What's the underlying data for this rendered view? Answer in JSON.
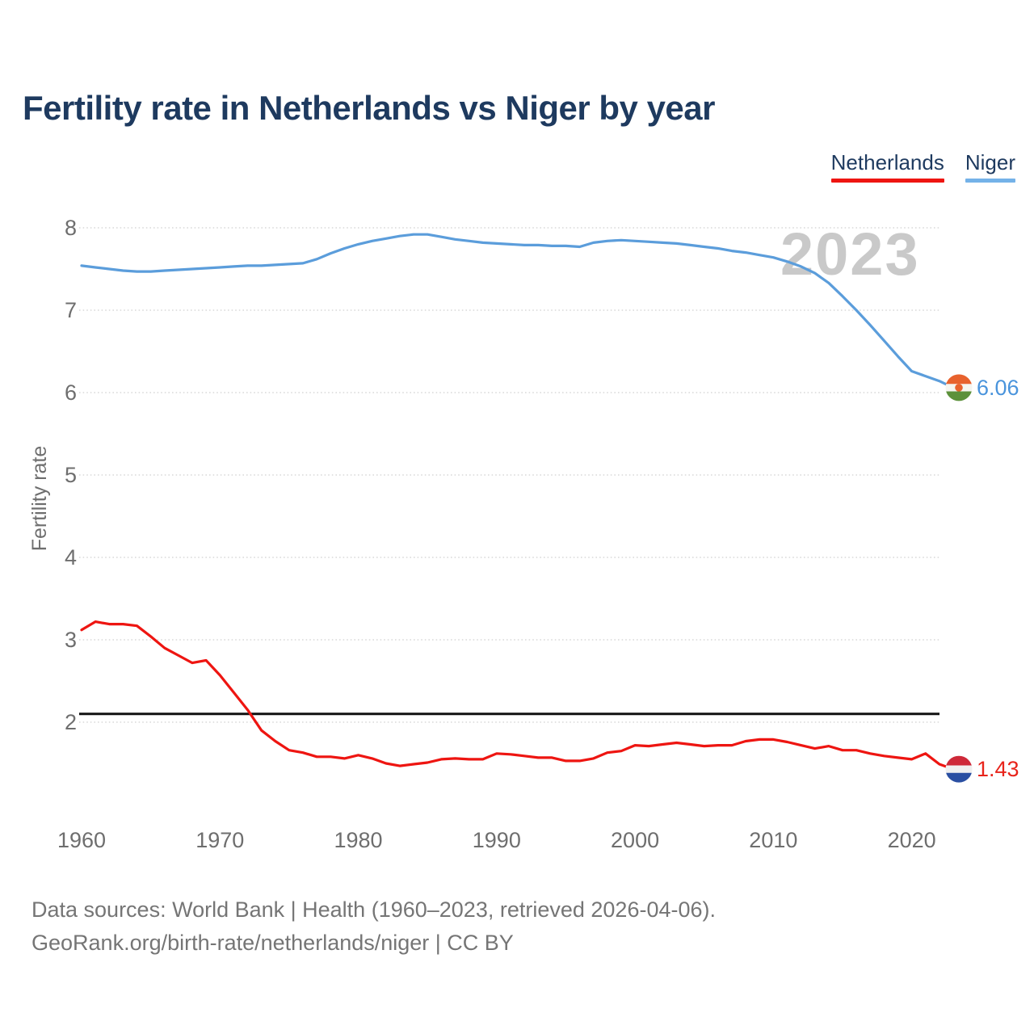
{
  "header": {
    "title": "Fertility rate in Netherlands vs Niger by year"
  },
  "source": {
    "line1": "Data sources: World Bank | Health (1960–2023, retrieved 2026-04-06).",
    "line2": "GeoRank.org/birth-rate/netherlands/niger | CC BY"
  },
  "chart_data": {
    "type": "line",
    "title": "Fertility rate in Netherlands vs Niger by year",
    "ylabel": "Fertility rate",
    "xlabel": "",
    "annotation": "2023",
    "grid": "horizontal-dotted",
    "legend_position": "top-right",
    "x_range": [
      1960,
      2023
    ],
    "x_ticks": [
      1960,
      1970,
      1980,
      1990,
      2000,
      2010,
      2020
    ],
    "y_ticks": [
      2,
      3,
      4,
      5,
      6,
      7,
      8
    ],
    "ylim": [
      1.2,
      8.15
    ],
    "reference_line": {
      "value": 2.1,
      "color": "#111111"
    },
    "colors": {
      "grid": "#D9D9D9",
      "tick_label": "#6E6E6E",
      "watermark": "#C9C9C9",
      "legend_text": "#1E3A5F"
    },
    "series": [
      {
        "name": "Netherlands",
        "color": "#EE1511",
        "value_color": "#E8241B",
        "end_label": "1.43",
        "flag": {
          "bands": [
            "#CE2939",
            "#F0F0F0",
            "#2A4FA2"
          ]
        },
        "values": [
          3.12,
          3.22,
          3.19,
          3.19,
          3.17,
          3.04,
          2.9,
          2.81,
          2.72,
          2.75,
          2.57,
          2.36,
          2.15,
          1.9,
          1.77,
          1.66,
          1.63,
          1.58,
          1.58,
          1.56,
          1.6,
          1.56,
          1.5,
          1.47,
          1.49,
          1.51,
          1.55,
          1.56,
          1.55,
          1.55,
          1.62,
          1.61,
          1.59,
          1.57,
          1.57,
          1.53,
          1.53,
          1.56,
          1.63,
          1.65,
          1.72,
          1.71,
          1.73,
          1.75,
          1.73,
          1.71,
          1.72,
          1.72,
          1.77,
          1.79,
          1.79,
          1.76,
          1.72,
          1.68,
          1.71,
          1.66,
          1.66,
          1.62,
          1.59,
          1.57,
          1.55,
          1.62,
          1.49,
          1.43
        ]
      },
      {
        "name": "Niger",
        "color": "#5B9DDB",
        "value_color": "#4A94DC",
        "end_label": "6.06",
        "flag": {
          "bands": [
            "#E8622D",
            "#F5F5F0",
            "#5C913B"
          ],
          "dot": "#E8622D"
        },
        "values": [
          7.54,
          7.52,
          7.5,
          7.48,
          7.47,
          7.47,
          7.48,
          7.49,
          7.5,
          7.51,
          7.52,
          7.53,
          7.54,
          7.54,
          7.55,
          7.56,
          7.57,
          7.62,
          7.69,
          7.75,
          7.8,
          7.84,
          7.87,
          7.9,
          7.92,
          7.92,
          7.89,
          7.86,
          7.84,
          7.82,
          7.81,
          7.8,
          7.79,
          7.79,
          7.78,
          7.78,
          7.77,
          7.82,
          7.84,
          7.85,
          7.84,
          7.83,
          7.82,
          7.81,
          7.79,
          7.77,
          7.75,
          7.72,
          7.7,
          7.67,
          7.64,
          7.59,
          7.53,
          7.45,
          7.33,
          7.17,
          7.0,
          6.82,
          6.63,
          6.44,
          6.26,
          6.2,
          6.14,
          6.06
        ]
      }
    ]
  }
}
